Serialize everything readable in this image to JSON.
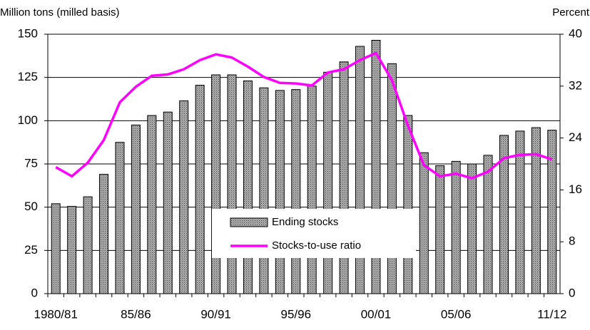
{
  "chart_data": {
    "type": "bar-line",
    "y_label": "Million tons (milled basis)",
    "y2_label": "Percent",
    "categories": [
      "1980/81",
      null,
      null,
      null,
      null,
      "85/86",
      null,
      null,
      null,
      null,
      "90/91",
      null,
      null,
      null,
      null,
      "95/96",
      null,
      null,
      null,
      null,
      "00/01",
      null,
      null,
      null,
      null,
      "05/06",
      null,
      null,
      null,
      null,
      null,
      "11/12"
    ],
    "series": [
      {
        "name": "Ending stocks",
        "type": "bar",
        "color": "#7f7f7f",
        "values": [
          52,
          50.5,
          56,
          69,
          87.5,
          97.5,
          103,
          105,
          111.5,
          120.5,
          126.5,
          126.5,
          123,
          119,
          117.5,
          118,
          120,
          128,
          134,
          143,
          146.5,
          133,
          103,
          81.5,
          74,
          76.5,
          75,
          80,
          91.5,
          94,
          96,
          94.5
        ]
      },
      {
        "name": "Stocks-to-use ratio",
        "type": "line",
        "axis": "y2",
        "color": "#ff00ff",
        "values": [
          19.5,
          18.1,
          20.2,
          23.7,
          29.5,
          31.9,
          33.6,
          33.8,
          34.6,
          36,
          36.9,
          36.4,
          35,
          33.4,
          32.5,
          32.4,
          32.1,
          34.1,
          34.6,
          36,
          37.1,
          32.9,
          25.9,
          19.8,
          18.1,
          18.5,
          17.8,
          18.8,
          20.9,
          21.4,
          21.5,
          20.7
        ]
      }
    ],
    "ylim": [
      0,
      150
    ],
    "yticks": [
      0,
      25,
      50,
      75,
      100,
      125,
      150
    ],
    "y2lim": [
      0,
      40
    ],
    "y2ticks": [
      0,
      8,
      16,
      24,
      32,
      40
    ],
    "grid": true,
    "legend": "center"
  }
}
